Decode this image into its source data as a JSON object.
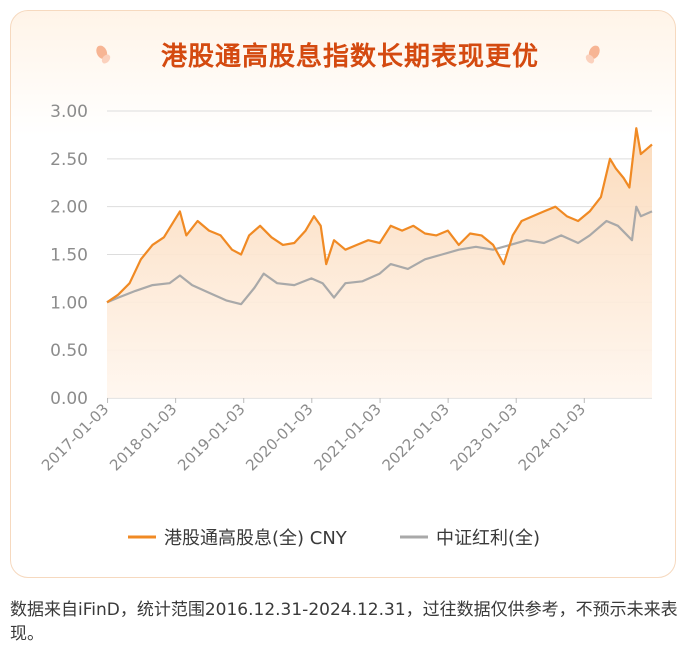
{
  "title": "港股通高股息指数长期表现更优",
  "footnote": "数据来自iFinD，统计范围2016.12.31-2024.12.31，过往数据仅供参考，不预示未来表现。",
  "colors": {
    "series_a": "#f08a24",
    "series_b": "#a9a9a9",
    "title": "#d44a10",
    "area_top": "#fbd9b8",
    "area_bottom": "#fff6ee",
    "grid": "#dddddd",
    "axis_text": "#8c8c8c",
    "card_border": "#f6d9bf"
  },
  "icons": [
    "petal-icon",
    "petal-icon"
  ],
  "chart_data": {
    "type": "line",
    "title": "港股通高股息指数长期表现更优",
    "ylim": [
      0,
      3
    ],
    "yticks": [
      "0.00",
      "0.50",
      "1.00",
      "1.50",
      "2.00",
      "2.50",
      "3.00"
    ],
    "xticks": [
      "2017-01-03",
      "2018-01-03",
      "2019-01-03",
      "2020-01-03",
      "2021-01-03",
      "2022-01-03",
      "2023-01-03",
      "2024-01-03"
    ],
    "xrange": [
      "2016-12-31",
      "2024-12-31"
    ],
    "grid": true,
    "legend_position": "bottom",
    "series": [
      {
        "name": "港股通高股息(全) CNY",
        "area_fill": true,
        "points": [
          [
            "2016-12-31",
            1.0
          ],
          [
            "2017-03-01",
            1.08
          ],
          [
            "2017-05-01",
            1.2
          ],
          [
            "2017-07-01",
            1.45
          ],
          [
            "2017-09-01",
            1.6
          ],
          [
            "2017-11-01",
            1.68
          ],
          [
            "2018-01-26",
            1.95
          ],
          [
            "2018-03-01",
            1.7
          ],
          [
            "2018-05-01",
            1.85
          ],
          [
            "2018-07-01",
            1.75
          ],
          [
            "2018-09-01",
            1.7
          ],
          [
            "2018-11-01",
            1.55
          ],
          [
            "2018-12-20",
            1.5
          ],
          [
            "2019-02-01",
            1.7
          ],
          [
            "2019-04-01",
            1.8
          ],
          [
            "2019-06-01",
            1.68
          ],
          [
            "2019-08-01",
            1.6
          ],
          [
            "2019-10-01",
            1.62
          ],
          [
            "2019-12-01",
            1.75
          ],
          [
            "2020-01-15",
            1.9
          ],
          [
            "2020-02-20",
            1.8
          ],
          [
            "2020-03-20",
            1.4
          ],
          [
            "2020-05-01",
            1.65
          ],
          [
            "2020-07-01",
            1.55
          ],
          [
            "2020-09-01",
            1.6
          ],
          [
            "2020-11-01",
            1.65
          ],
          [
            "2021-01-01",
            1.62
          ],
          [
            "2021-03-01",
            1.8
          ],
          [
            "2021-05-01",
            1.75
          ],
          [
            "2021-07-01",
            1.8
          ],
          [
            "2021-09-01",
            1.72
          ],
          [
            "2021-11-01",
            1.7
          ],
          [
            "2022-01-01",
            1.75
          ],
          [
            "2022-03-01",
            1.6
          ],
          [
            "2022-05-01",
            1.72
          ],
          [
            "2022-07-01",
            1.7
          ],
          [
            "2022-09-01",
            1.6
          ],
          [
            "2022-10-28",
            1.4
          ],
          [
            "2022-12-15",
            1.7
          ],
          [
            "2023-02-01",
            1.85
          ],
          [
            "2023-04-01",
            1.9
          ],
          [
            "2023-06-01",
            1.95
          ],
          [
            "2023-08-01",
            2.0
          ],
          [
            "2023-10-01",
            1.9
          ],
          [
            "2023-12-01",
            1.85
          ],
          [
            "2024-02-01",
            1.95
          ],
          [
            "2024-04-01",
            2.1
          ],
          [
            "2024-05-20",
            2.5
          ],
          [
            "2024-06-20",
            2.4
          ],
          [
            "2024-08-01",
            2.3
          ],
          [
            "2024-09-01",
            2.2
          ],
          [
            "2024-10-08",
            2.82
          ],
          [
            "2024-11-01",
            2.55
          ],
          [
            "2024-12-01",
            2.6
          ],
          [
            "2024-12-31",
            2.65
          ]
        ]
      },
      {
        "name": "中证红利(全)",
        "area_fill": false,
        "points": [
          [
            "2016-12-31",
            1.0
          ],
          [
            "2017-03-01",
            1.05
          ],
          [
            "2017-06-01",
            1.12
          ],
          [
            "2017-09-01",
            1.18
          ],
          [
            "2017-12-01",
            1.2
          ],
          [
            "2018-01-26",
            1.28
          ],
          [
            "2018-04-01",
            1.18
          ],
          [
            "2018-07-01",
            1.1
          ],
          [
            "2018-10-01",
            1.02
          ],
          [
            "2018-12-20",
            0.98
          ],
          [
            "2019-03-01",
            1.15
          ],
          [
            "2019-04-20",
            1.3
          ],
          [
            "2019-07-01",
            1.2
          ],
          [
            "2019-10-01",
            1.18
          ],
          [
            "2020-01-01",
            1.25
          ],
          [
            "2020-03-01",
            1.2
          ],
          [
            "2020-05-01",
            1.05
          ],
          [
            "2020-07-01",
            1.2
          ],
          [
            "2020-10-01",
            1.22
          ],
          [
            "2021-01-01",
            1.3
          ],
          [
            "2021-03-01",
            1.4
          ],
          [
            "2021-06-01",
            1.35
          ],
          [
            "2021-09-01",
            1.45
          ],
          [
            "2021-12-01",
            1.5
          ],
          [
            "2022-03-01",
            1.55
          ],
          [
            "2022-06-01",
            1.58
          ],
          [
            "2022-09-01",
            1.55
          ],
          [
            "2022-12-01",
            1.6
          ],
          [
            "2023-03-01",
            1.65
          ],
          [
            "2023-06-01",
            1.62
          ],
          [
            "2023-09-01",
            1.7
          ],
          [
            "2023-12-01",
            1.62
          ],
          [
            "2024-02-01",
            1.7
          ],
          [
            "2024-05-01",
            1.85
          ],
          [
            "2024-07-01",
            1.8
          ],
          [
            "2024-09-15",
            1.65
          ],
          [
            "2024-10-08",
            2.0
          ],
          [
            "2024-11-01",
            1.9
          ],
          [
            "2024-12-31",
            1.95
          ]
        ]
      }
    ]
  }
}
